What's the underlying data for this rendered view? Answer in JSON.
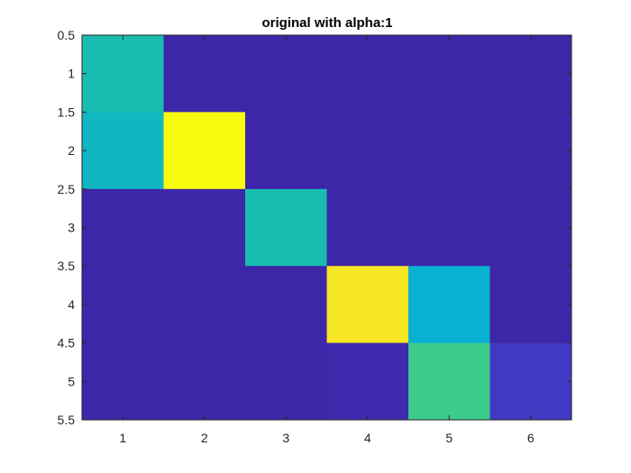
{
  "chart_data": {
    "type": "heatmap",
    "title": "original with alpha:1",
    "xlabel": "",
    "ylabel": "",
    "x_ticks": [
      "1",
      "2",
      "3",
      "4",
      "5",
      "6"
    ],
    "y_ticks": [
      "0.5",
      "1",
      "1.5",
      "2",
      "2.5",
      "3",
      "3.5",
      "4",
      "4.5",
      "5",
      "5.5"
    ],
    "xlim": [
      0.5,
      6.5
    ],
    "ylim": [
      0.5,
      5.5
    ],
    "y_direction": "reverse",
    "colormap": "parula",
    "clim": [
      0,
      1
    ],
    "values": [
      [
        0.55,
        0.0,
        0.0,
        0.0,
        0.0,
        0.0
      ],
      [
        0.5,
        1.0,
        0.0,
        0.0,
        0.0,
        0.0
      ],
      [
        0.0,
        0.0,
        0.55,
        0.0,
        0.0,
        0.0
      ],
      [
        0.0,
        0.0,
        0.0,
        0.95,
        0.45,
        0.0
      ],
      [
        0.0,
        0.0,
        0.0,
        0.01,
        0.65,
        0.05
      ]
    ],
    "grid": false
  }
}
